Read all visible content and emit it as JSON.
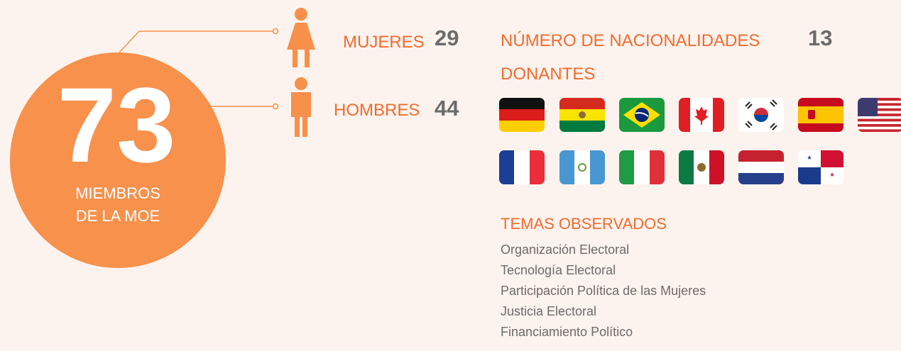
{
  "total": {
    "value": 73,
    "lines": [
      "MIEMBROS",
      "DE LA MOE"
    ]
  },
  "gender": [
    {
      "label": "MUJERES",
      "value": 29
    },
    {
      "label": "HOMBRES",
      "value": 44
    }
  ],
  "nationalities": {
    "label": "NÚMERO DE NACIONALIDADES",
    "value": 13
  },
  "donors_title": "DONANTES",
  "topics": {
    "title": "TEMAS OBSERVADOS",
    "items": [
      "Organización Electoral",
      "Tecnología Electoral",
      "Participación Política de las Mujeres",
      "Justicia Electoral",
      "Financiamiento Político"
    ]
  }
}
